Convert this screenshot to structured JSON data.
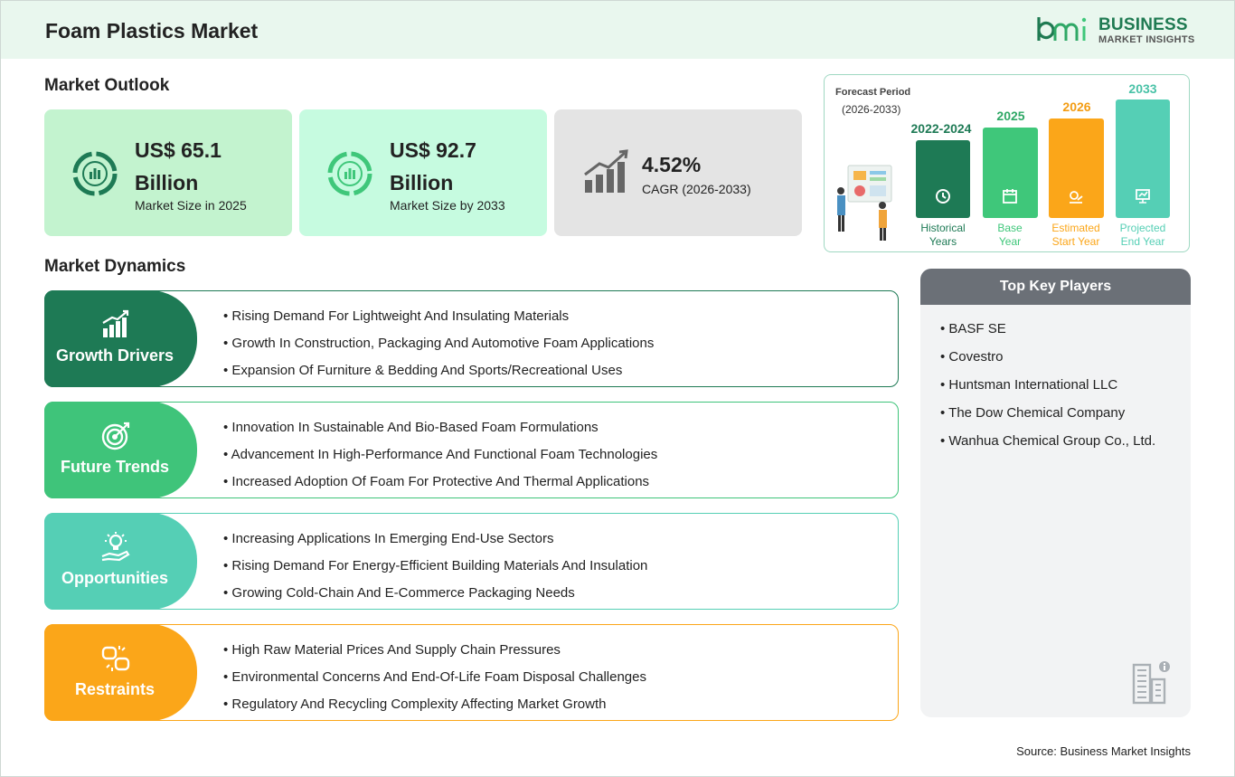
{
  "header": {
    "title": "Foam Plastics Market"
  },
  "logo": {
    "mark": "bmi",
    "line1": "BUSINESS",
    "line2": "MARKET INSIGHTS"
  },
  "outlook": {
    "title": "Market Outlook",
    "cards": [
      {
        "value": "US$ 65.1 Billion",
        "label": "Market Size in 2025",
        "icon": "chart-ring-icon",
        "bg": "#c3f3cf"
      },
      {
        "value": "US$ 92.7 Billion",
        "label": "Market Size by 2033",
        "icon": "chart-ring-icon",
        "bg": "#c6fbe0"
      },
      {
        "value": "4.52%",
        "label": "CAGR (2026-2033)",
        "icon": "growth-chart-icon",
        "bg": "#e4e4e4"
      }
    ]
  },
  "forecast": {
    "label": "Forecast Period",
    "range": "(2026-2033)",
    "bars": [
      {
        "year": "2022-2024",
        "label1": "Historical",
        "label2": "Years",
        "color": "#1e7a55",
        "year_color": "#1e7a55",
        "label_color": "#1e7a55",
        "icon": "history-icon"
      },
      {
        "year": "2025",
        "label1": "Base",
        "label2": "Year",
        "color": "#3fc77a",
        "year_color": "#2fa866",
        "label_color": "#3fc77a",
        "icon": "calendar-icon"
      },
      {
        "year": "2026",
        "label1": "Estimated",
        "label2": "Start Year",
        "color": "#fba619",
        "year_color": "#f39c12",
        "label_color": "#fba619",
        "icon": "settings-chart-icon"
      },
      {
        "year": "2033",
        "label1": "Projected",
        "label2": "End Year",
        "color": "#55cfb5",
        "year_color": "#49c2a7",
        "label_color": "#55cfb5",
        "icon": "presentation-icon"
      }
    ]
  },
  "dynamics": {
    "title": "Market Dynamics",
    "groups": [
      {
        "label": "Growth Drivers",
        "color": "#1e7a55",
        "icon": "bar-growth-icon",
        "items": [
          "Rising Demand For Lightweight And Insulating Materials",
          "Growth In Construction, Packaging And Automotive Foam Applications",
          "Expansion Of Furniture & Bedding And Sports/Recreational Uses"
        ]
      },
      {
        "label": "Future Trends",
        "color": "#3fc47a",
        "icon": "target-icon",
        "items": [
          "Innovation In Sustainable And Bio-Based Foam Formulations",
          "Advancement In High-Performance And Functional Foam Technologies",
          "Increased Adoption Of Foam For Protective And Thermal Applications"
        ]
      },
      {
        "label": "Opportunities",
        "color": "#55cfb5",
        "icon": "lightbulb-hand-icon",
        "items": [
          "Increasing Applications In Emerging End-Use Sectors",
          "Rising Demand For Energy-Efficient Building Materials And Insulation",
          "Growing Cold-Chain And E-Commerce Packaging Needs"
        ]
      },
      {
        "label": "Restraints",
        "color": "#fba619",
        "icon": "broken-link-icon",
        "items": [
          "High Raw Material Prices And Supply Chain Pressures",
          "Environmental Concerns And End-Of-Life Foam Disposal Challenges",
          "Regulatory And Recycling Complexity Affecting Market Growth"
        ]
      }
    ]
  },
  "players": {
    "title": "Top Key Players",
    "items": [
      "BASF SE",
      "Covestro",
      "Huntsman International LLC",
      "The Dow Chemical Company",
      "Wanhua Chemical Group Co., Ltd."
    ]
  },
  "source": "Source: Business Market Insights"
}
